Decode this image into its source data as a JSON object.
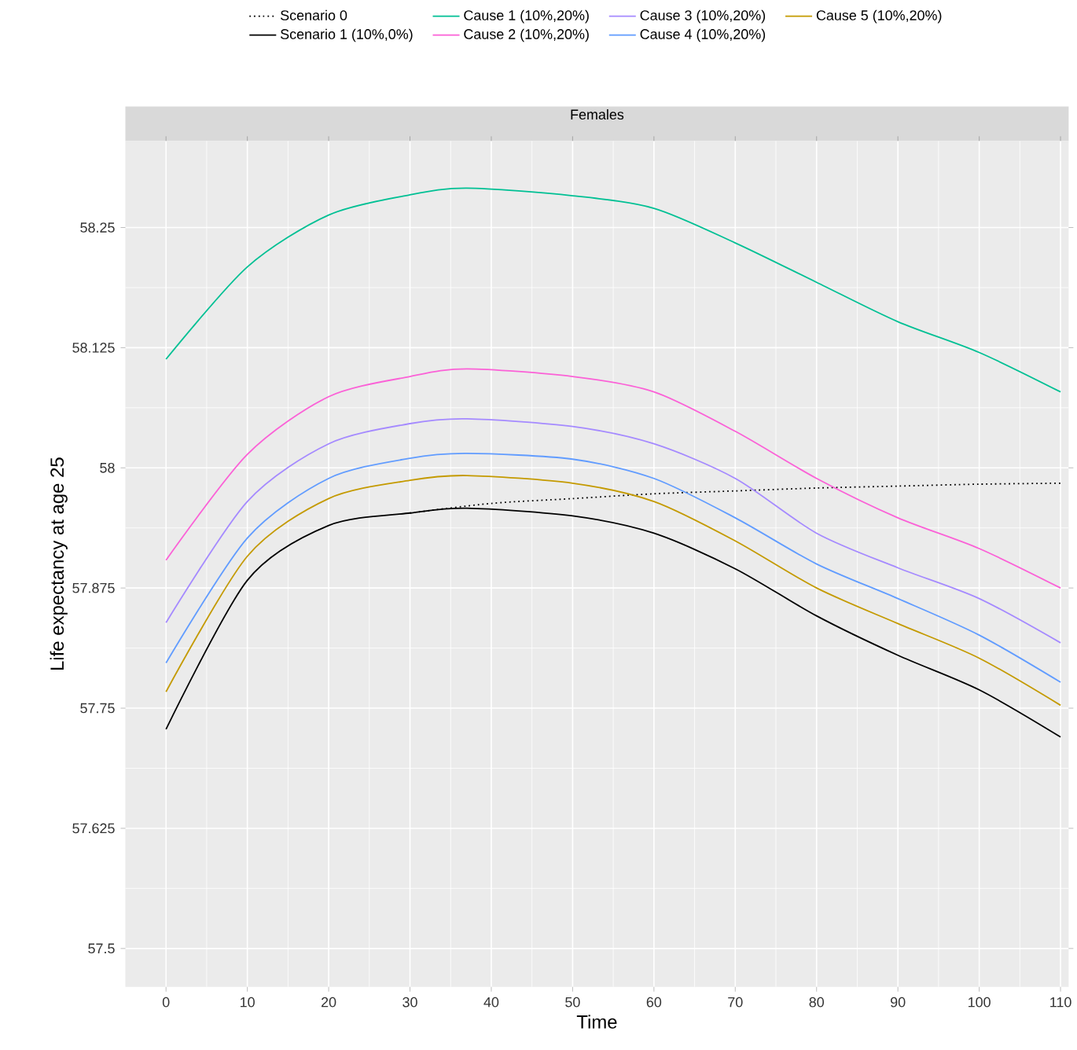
{
  "chart_data": {
    "type": "line",
    "title": "Females",
    "xlabel": "Time",
    "ylabel": "Life expectancy at age 25",
    "xlim": [
      -5,
      111
    ],
    "ylim": [
      57.46,
      58.34
    ],
    "xticks": [
      0,
      10,
      20,
      30,
      40,
      50,
      60,
      70,
      80,
      90,
      100,
      110
    ],
    "yticks": [
      57.5,
      57.625,
      57.75,
      57.875,
      58,
      58.125,
      58.25
    ],
    "grid": true,
    "legend": "top",
    "x": [
      0,
      10,
      20,
      30,
      37,
      50,
      60,
      70,
      80,
      90,
      100,
      110
    ],
    "series": [
      {
        "name": "Scenario 0",
        "color": "#000000",
        "line_style": "dotted",
        "x": [
          30,
          40,
          50,
          60,
          70,
          80,
          90,
          100,
          110
        ],
        "values": [
          57.953,
          57.963,
          57.968,
          57.973,
          57.976,
          57.979,
          57.981,
          57.983,
          57.984
        ]
      },
      {
        "name": "Scenario 1 (10%,0%)",
        "color": "#000000",
        "values": [
          57.728,
          57.883,
          57.94,
          57.953,
          57.958,
          57.95,
          57.932,
          57.895,
          57.846,
          57.805,
          57.769,
          57.72
        ]
      },
      {
        "name": "Cause 1 (10%,20%)",
        "color": "#00C094",
        "values": [
          58.113,
          58.209,
          58.263,
          58.284,
          58.291,
          58.283,
          58.27,
          58.234,
          58.193,
          58.152,
          58.12,
          58.079
        ]
      },
      {
        "name": "Cause 2 (10%,20%)",
        "color": "#FB61D7",
        "values": [
          57.904,
          58.014,
          58.074,
          58.095,
          58.103,
          58.095,
          58.079,
          58.038,
          57.989,
          57.948,
          57.916,
          57.875
        ]
      },
      {
        "name": "Cause 3 (10%,20%)",
        "color": "#A58AFF",
        "values": [
          57.839,
          57.965,
          58.025,
          58.046,
          58.051,
          58.043,
          58.025,
          57.989,
          57.932,
          57.896,
          57.864,
          57.818
        ]
      },
      {
        "name": "Cause 4 (10%,20%)",
        "color": "#619CFF",
        "values": [
          57.797,
          57.927,
          57.989,
          58.01,
          58.015,
          58.009,
          57.989,
          57.948,
          57.9,
          57.864,
          57.826,
          57.777
        ]
      },
      {
        "name": "Cause 5 (10%,20%)",
        "color": "#C49A00",
        "values": [
          57.767,
          57.908,
          57.968,
          57.987,
          57.992,
          57.984,
          57.965,
          57.924,
          57.875,
          57.838,
          57.802,
          57.753
        ]
      }
    ]
  }
}
